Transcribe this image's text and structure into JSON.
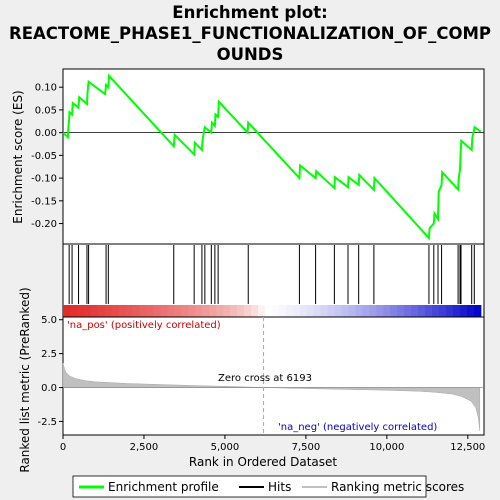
{
  "title_lines": [
    "Enrichment plot:",
    "REACTOME_PHASE1_FUNCTIONALIZATION_OF_COMP",
    "OUNDS"
  ],
  "colors": {
    "background": "#efefef",
    "plot_bg": "#ffffff",
    "es_line": "#00ff00",
    "hits": "#000000",
    "pos_label": "#cc0000",
    "neg_label": "#0000cc",
    "metric_fill": "#c0c0c0",
    "zero_line": "#808080"
  },
  "chart_data": [
    {
      "type": "line",
      "name": "enrichment-profile",
      "ylabel": "Enrichment score (ES)",
      "ylim": [
        -0.245,
        0.14
      ],
      "xlim": [
        0,
        13000
      ],
      "yticks": [
        0.1,
        0.05,
        0.0,
        -0.05,
        -0.1,
        -0.15,
        -0.2
      ],
      "ytick_labels": [
        "0.10",
        "0.05",
        "0.00",
        "-0.05",
        "-0.10",
        "-0.15",
        "-0.20"
      ],
      "grid": false,
      "points": [
        [
          0,
          0.0
        ],
        [
          150,
          -0.01
        ],
        [
          170,
          0.015
        ],
        [
          190,
          0.03
        ],
        [
          200,
          0.045
        ],
        [
          280,
          0.04
        ],
        [
          300,
          0.065
        ],
        [
          480,
          0.055
        ],
        [
          500,
          0.078
        ],
        [
          740,
          0.063
        ],
        [
          760,
          0.09
        ],
        [
          790,
          0.112
        ],
        [
          1300,
          0.085
        ],
        [
          1330,
          0.105
        ],
        [
          1400,
          0.1
        ],
        [
          1420,
          0.125
        ],
        [
          3420,
          -0.03
        ],
        [
          3450,
          -0.005
        ],
        [
          4050,
          -0.048
        ],
        [
          4070,
          -0.022
        ],
        [
          4290,
          -0.038
        ],
        [
          4310,
          -0.015
        ],
        [
          4380,
          0.012
        ],
        [
          4580,
          0.0
        ],
        [
          4600,
          0.022
        ],
        [
          4690,
          0.015
        ],
        [
          4710,
          0.04
        ],
        [
          4790,
          0.035
        ],
        [
          4810,
          0.068
        ],
        [
          5700,
          0.0
        ],
        [
          5720,
          0.022
        ],
        [
          7300,
          -0.1
        ],
        [
          7320,
          -0.072
        ],
        [
          7800,
          -0.1
        ],
        [
          7820,
          -0.085
        ],
        [
          8380,
          -0.122
        ],
        [
          8400,
          -0.098
        ],
        [
          8800,
          -0.12
        ],
        [
          8820,
          -0.098
        ],
        [
          9130,
          -0.115
        ],
        [
          9150,
          -0.093
        ],
        [
          9600,
          -0.126
        ],
        [
          9620,
          -0.1
        ],
        [
          11300,
          -0.232
        ],
        [
          11320,
          -0.21
        ],
        [
          11450,
          -0.2
        ],
        [
          11470,
          -0.178
        ],
        [
          11580,
          -0.19
        ],
        [
          11600,
          -0.13
        ],
        [
          11690,
          -0.115
        ],
        [
          11710,
          -0.087
        ],
        [
          12200,
          -0.125
        ],
        [
          12220,
          -0.1
        ],
        [
          12260,
          -0.082
        ],
        [
          12280,
          -0.042
        ],
        [
          12300,
          -0.018
        ],
        [
          12620,
          -0.038
        ],
        [
          12640,
          -0.012
        ],
        [
          12710,
          0.012
        ],
        [
          12900,
          0.002
        ]
      ]
    },
    {
      "type": "scatter",
      "name": "hits",
      "x": [
        190,
        280,
        480,
        740,
        790,
        1330,
        1400,
        3420,
        4050,
        4290,
        4380,
        4580,
        4690,
        4790,
        5720,
        7300,
        7800,
        8380,
        8800,
        9130,
        9600,
        11300,
        11450,
        11580,
        11690,
        12200,
        12260,
        12290,
        12620,
        12700
      ]
    },
    {
      "type": "area",
      "name": "ranked-metric",
      "ylabel": "Ranked list metric (PreRanked)",
      "xlabel": "Rank in Ordered Dataset",
      "ylim": [
        -3.5,
        5.2
      ],
      "xlim": [
        0,
        13000
      ],
      "yticks": [
        5.0,
        2.5,
        0.0,
        -2.5
      ],
      "ytick_labels": [
        "5.0",
        "2.5",
        "0.0",
        "-2.5"
      ],
      "xticks": [
        0,
        2500,
        5000,
        7500,
        10000,
        12500
      ],
      "xtick_labels": [
        "0",
        "2,500",
        "5,000",
        "7,500",
        "10,000",
        "12,500"
      ],
      "zero_cross": 6193,
      "points": [
        [
          0,
          1.8
        ],
        [
          50,
          1.35
        ],
        [
          100,
          1.1
        ],
        [
          200,
          0.85
        ],
        [
          400,
          0.65
        ],
        [
          700,
          0.5
        ],
        [
          1000,
          0.42
        ],
        [
          2000,
          0.3
        ],
        [
          3000,
          0.22
        ],
        [
          4000,
          0.15
        ],
        [
          5000,
          0.09
        ],
        [
          6193,
          0.0
        ],
        [
          7000,
          -0.05
        ],
        [
          8000,
          -0.1
        ],
        [
          9000,
          -0.15
        ],
        [
          10000,
          -0.2
        ],
        [
          11000,
          -0.28
        ],
        [
          11500,
          -0.35
        ],
        [
          12000,
          -0.48
        ],
        [
          12300,
          -0.65
        ],
        [
          12600,
          -1.0
        ],
        [
          12750,
          -1.5
        ],
        [
          12820,
          -2.2
        ],
        [
          12870,
          -3.2
        ]
      ]
    }
  ],
  "labels": {
    "pos": "'na_pos' (positively correlated)",
    "neg": "'na_neg' (negatively correlated)",
    "zero_cross": "Zero cross at 6193"
  },
  "legend": [
    {
      "name": "Enrichment profile",
      "color": "#00ff00"
    },
    {
      "name": "Hits",
      "color": "#000000"
    },
    {
      "name": "Ranking metric scores",
      "color": "#c0c0c0"
    }
  ]
}
